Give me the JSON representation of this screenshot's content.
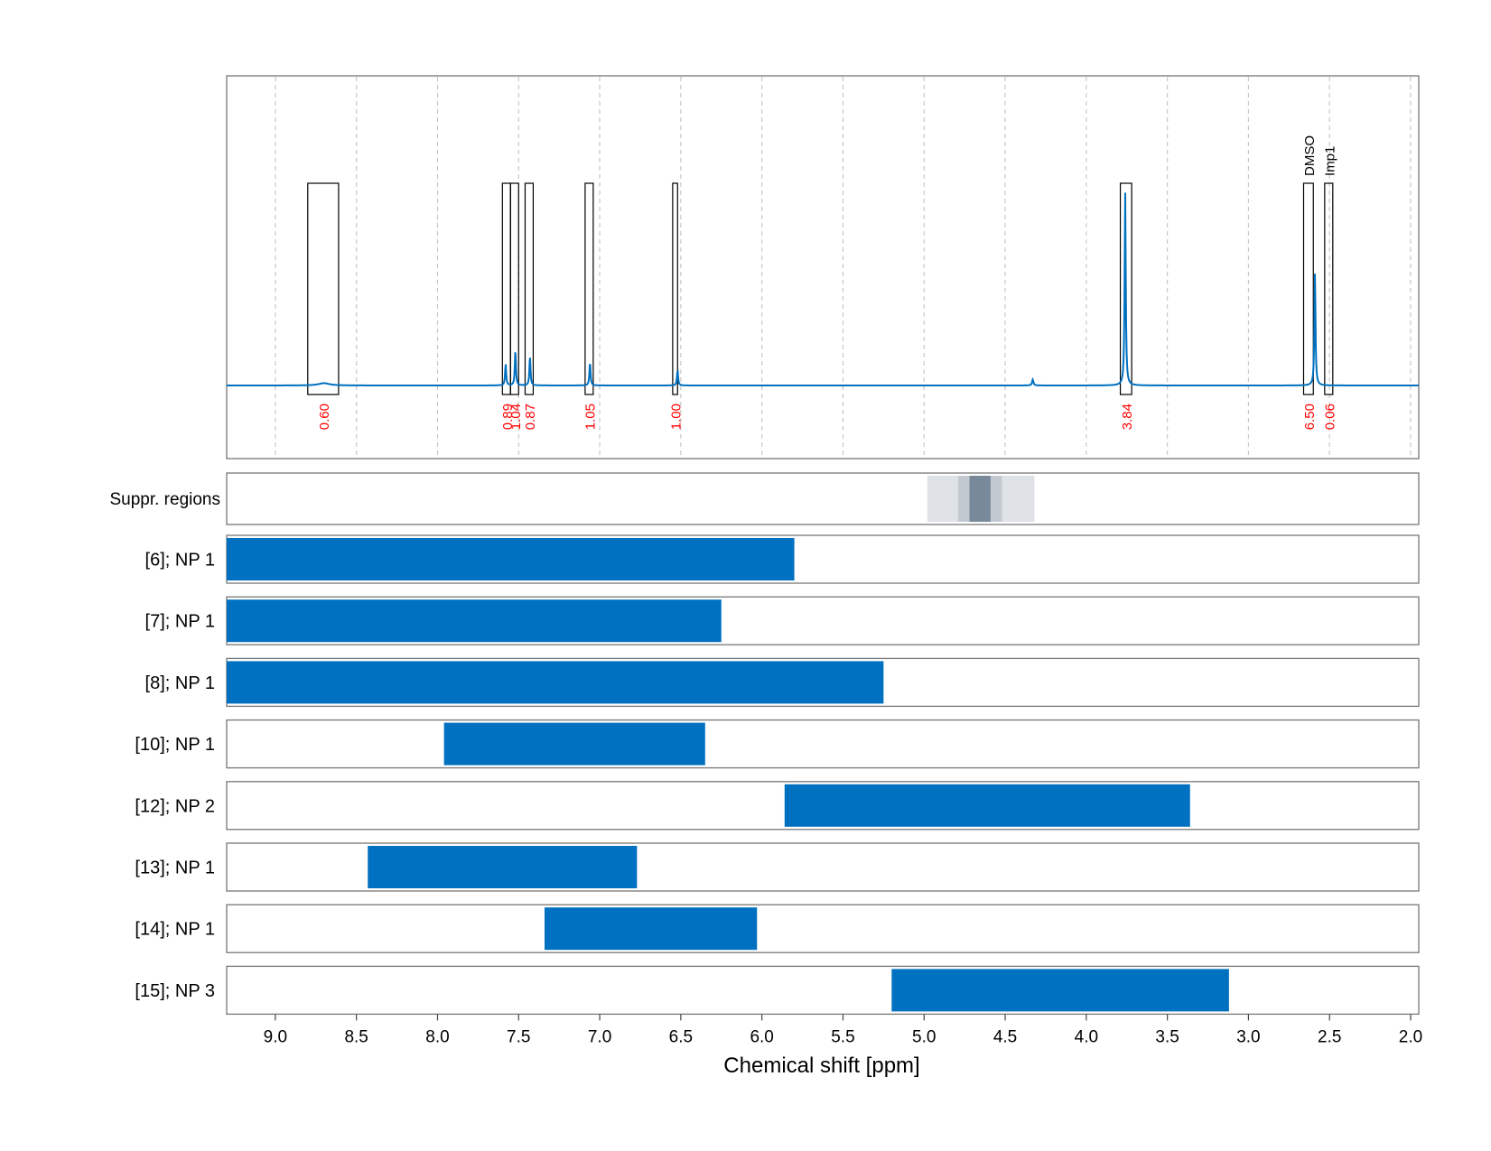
{
  "chart_data": {
    "type": "nmr-spectrum-with-range-bars",
    "xlabel": "Chemical shift [ppm]",
    "xlim": [
      9.3,
      1.95
    ],
    "x_ticks": [
      "9.0",
      "8.5",
      "8.0",
      "7.5",
      "7.0",
      "6.5",
      "6.0",
      "5.5",
      "5.0",
      "4.5",
      "4.0",
      "3.5",
      "3.0",
      "2.5",
      "2.0"
    ],
    "x_tick_values": [
      9.0,
      8.5,
      8.0,
      7.5,
      7.0,
      6.5,
      6.0,
      5.5,
      5.0,
      4.5,
      4.0,
      3.5,
      3.0,
      2.5,
      2.0
    ],
    "grid": "vertical dashed",
    "spectrum": {
      "color": "#0070c0",
      "peaks": [
        {
          "ppm": 8.7,
          "height": 0.012,
          "width": 0.04
        },
        {
          "ppm": 7.58,
          "height": 0.11,
          "width": 0.004
        },
        {
          "ppm": 7.52,
          "height": 0.18,
          "width": 0.004
        },
        {
          "ppm": 7.43,
          "height": 0.15,
          "width": 0.004
        },
        {
          "ppm": 7.06,
          "height": 0.12,
          "width": 0.004
        },
        {
          "ppm": 6.52,
          "height": 0.08,
          "width": 0.004
        },
        {
          "ppm": 4.33,
          "height": 0.03,
          "width": 0.005
        },
        {
          "ppm": 3.76,
          "height": 1.0,
          "width": 0.004
        },
        {
          "ppm": 2.59,
          "height": 0.58,
          "width": 0.004
        }
      ]
    },
    "integrals": [
      {
        "from": 8.8,
        "to": 8.61,
        "value": "0.60",
        "label": ""
      },
      {
        "from": 7.6,
        "to": 7.55,
        "value": "0.89",
        "label": ""
      },
      {
        "from": 7.55,
        "to": 7.5,
        "value": "1.04",
        "label": ""
      },
      {
        "from": 7.46,
        "to": 7.41,
        "value": "0.87",
        "label": ""
      },
      {
        "from": 7.09,
        "to": 7.04,
        "value": "1.05",
        "label": ""
      },
      {
        "from": 6.55,
        "to": 6.52,
        "value": "1.00",
        "label": ""
      },
      {
        "from": 3.79,
        "to": 3.72,
        "value": "3.84",
        "label": ""
      },
      {
        "from": 2.66,
        "to": 2.6,
        "value": "6.50",
        "label": "DMSO"
      },
      {
        "from": 2.53,
        "to": 2.48,
        "value": "0.06",
        "label": "Imp1"
      }
    ],
    "suppression": {
      "label": "Suppr. regions",
      "regions": [
        {
          "from": 4.98,
          "to": 4.32,
          "opacity": 0.15
        },
        {
          "from": 4.79,
          "to": 4.52,
          "opacity": 0.15
        },
        {
          "from": 4.72,
          "to": 4.59,
          "opacity": 0.45
        }
      ],
      "color": "#203f58"
    },
    "bars_color": "#0070c0",
    "bars": [
      {
        "name": "[6]; NP 1",
        "from": 9.3,
        "to": 5.8
      },
      {
        "name": "[7]; NP 1",
        "from": 9.3,
        "to": 6.25
      },
      {
        "name": "[8]; NP 1",
        "from": 9.3,
        "to": 5.25
      },
      {
        "name": "[10]; NP 1",
        "from": 7.96,
        "to": 6.35
      },
      {
        "name": "[12]; NP 2",
        "from": 5.86,
        "to": 3.36
      },
      {
        "name": "[13]; NP 1",
        "from": 8.43,
        "to": 6.77
      },
      {
        "name": "[14]; NP 1",
        "from": 7.34,
        "to": 6.03
      },
      {
        "name": "[15]; NP 3",
        "from": 5.2,
        "to": 3.12
      }
    ]
  }
}
